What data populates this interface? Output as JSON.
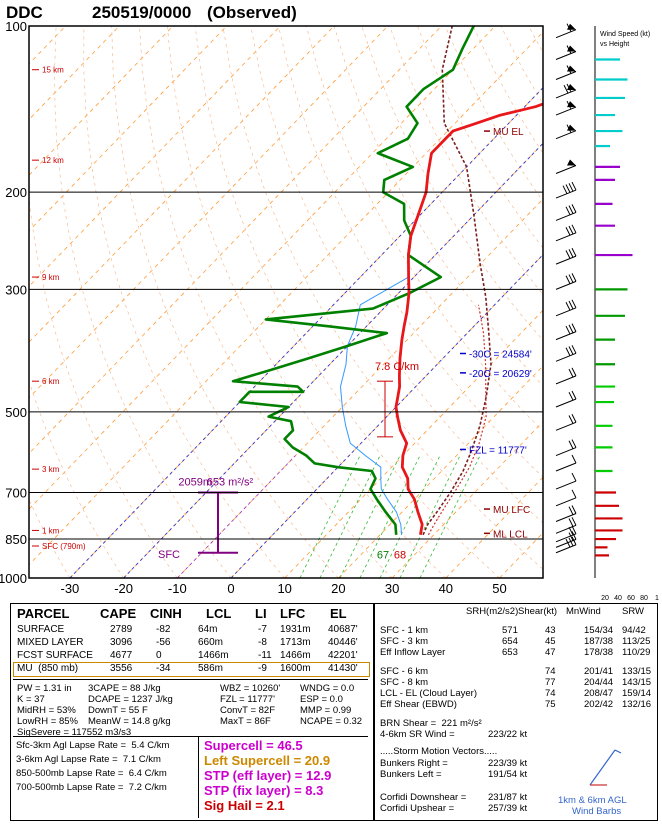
{
  "title": {
    "station": "DDC",
    "stamp": "250519/0000",
    "obs": "(Observed)"
  },
  "chart_data": {
    "type": "line",
    "title": "DDC 250519/0000 (Observed)",
    "xlabel": "",
    "ylabel": "",
    "x_ticks": [
      -30,
      -20,
      -10,
      0,
      10,
      20,
      30,
      40,
      50
    ],
    "p_ticks": [
      100,
      200,
      300,
      500,
      700,
      850,
      1000
    ],
    "pressure_axis": "log",
    "temp_range": [
      -35,
      55
    ],
    "pressure_range": [
      100,
      1000
    ],
    "height_labels": [
      "15 km",
      "12 km",
      "9 km",
      "6 km",
      "3 km",
      "1 km",
      "SFC (790m)"
    ],
    "height_label_pressures": [
      120,
      175,
      285,
      440,
      635,
      820,
      875
    ],
    "temperature": {
      "name": "Temperature",
      "color": "#e8171a",
      "points": [
        [
          27.5,
          835
        ],
        [
          26,
          800
        ],
        [
          23,
          760
        ],
        [
          20,
          720
        ],
        [
          17,
          690
        ],
        [
          15,
          660
        ],
        [
          12,
          630
        ],
        [
          10,
          600
        ],
        [
          8.5,
          570
        ],
        [
          5,
          540
        ],
        [
          2,
          510
        ],
        [
          0,
          490
        ],
        [
          -3,
          450
        ],
        [
          -5,
          430
        ],
        [
          -8,
          400
        ],
        [
          -11,
          370
        ],
        [
          -13,
          350
        ],
        [
          -15,
          330
        ],
        [
          -18,
          305
        ],
        [
          -21,
          285
        ],
        [
          -25,
          260
        ],
        [
          -28,
          240
        ],
        [
          -31,
          215
        ],
        [
          -33,
          200
        ],
        [
          -36,
          185
        ],
        [
          -39,
          170
        ],
        [
          -39,
          155
        ],
        [
          -36,
          150
        ],
        [
          -33,
          145
        ],
        [
          -28,
          140
        ],
        [
          -25,
          135
        ],
        [
          -26,
          130
        ],
        [
          -27,
          125
        ],
        [
          -24,
          120
        ],
        [
          -23,
          115
        ],
        [
          -26,
          110
        ],
        [
          -29,
          105
        ],
        [
          -30,
          100
        ]
      ]
    },
    "dewpoint": {
      "name": "Dewpoint",
      "color": "#008000",
      "points": [
        [
          23,
          835
        ],
        [
          21,
          800
        ],
        [
          17,
          760
        ],
        [
          13,
          720
        ],
        [
          10,
          690
        ],
        [
          9,
          660
        ],
        [
          7,
          640
        ],
        [
          0,
          630
        ],
        [
          -5,
          620
        ],
        [
          -8,
          600
        ],
        [
          -12,
          580
        ],
        [
          -15,
          560
        ],
        [
          -15,
          540
        ],
        [
          -17,
          520
        ],
        [
          -22,
          510
        ],
        [
          -20,
          490
        ],
        [
          -30,
          480
        ],
        [
          -30,
          460
        ],
        [
          -20,
          460
        ],
        [
          -22,
          450
        ],
        [
          -35,
          440
        ],
        [
          -30,
          420
        ],
        [
          -25,
          400
        ],
        [
          -20,
          380
        ],
        [
          -15,
          360
        ],
        [
          -27,
          350
        ],
        [
          -40,
          340
        ],
        [
          -22,
          325
        ],
        [
          -18,
          305
        ],
        [
          -15,
          285
        ],
        [
          -25,
          260
        ],
        [
          -28,
          240
        ],
        [
          -32,
          225
        ],
        [
          -35,
          210
        ],
        [
          -41,
          200
        ],
        [
          -43,
          190
        ],
        [
          -40,
          180
        ],
        [
          -49,
          170
        ],
        [
          -46,
          160
        ],
        [
          -47,
          150
        ],
        [
          -52,
          140
        ],
        [
          -52,
          130
        ],
        [
          -50,
          120
        ],
        [
          -52,
          110
        ],
        [
          -54,
          100
        ]
      ]
    },
    "wetbulb": {
      "name": "Wet-bulb",
      "color": "#3399ff",
      "points": [
        [
          24,
          835
        ],
        [
          22,
          800
        ],
        [
          19,
          760
        ],
        [
          15,
          720
        ],
        [
          12,
          690
        ],
        [
          10,
          660
        ],
        [
          8,
          630
        ],
        [
          3,
          600
        ],
        [
          -2,
          570
        ],
        [
          -6,
          530
        ],
        [
          -10,
          490
        ],
        [
          -14,
          450
        ],
        [
          -17,
          410
        ],
        [
          -20,
          380
        ],
        [
          -22,
          350
        ],
        [
          -25,
          320
        ],
        [
          -21,
          285
        ],
        [
          -25,
          260
        ],
        [
          -28,
          240
        ],
        [
          -31,
          215
        ],
        [
          -33,
          200
        ],
        [
          -36,
          185
        ],
        [
          -39,
          170
        ],
        [
          -39,
          155
        ],
        [
          -36,
          150
        ],
        [
          -33,
          145
        ],
        [
          -28,
          140
        ],
        [
          -25,
          135
        ],
        [
          -26,
          130
        ],
        [
          -27,
          125
        ],
        [
          -24,
          120
        ],
        [
          -23,
          115
        ],
        [
          -26,
          110
        ],
        [
          -29,
          105
        ],
        [
          -30,
          100
        ]
      ]
    },
    "parcel_mu": {
      "name": "MU parcel",
      "color": "#7b1f1f",
      "points": [
        [
          28,
          835
        ],
        [
          27,
          800
        ],
        [
          26.5,
          760
        ],
        [
          25.5,
          700
        ],
        [
          24,
          640
        ],
        [
          22,
          590
        ],
        [
          19,
          530
        ],
        [
          15,
          470
        ],
        [
          10,
          410
        ],
        [
          4,
          360
        ],
        [
          -3,
          310
        ],
        [
          -10,
          270
        ],
        [
          -20,
          220
        ],
        [
          -30,
          180
        ],
        [
          -42,
          150
        ],
        [
          -52,
          120
        ],
        [
          -58,
          100
        ]
      ]
    },
    "parcel_virtual": {
      "name": "Virtual parcel",
      "color": "#cc3333",
      "points": [
        [
          29,
          835
        ],
        [
          28,
          790
        ],
        [
          27,
          740
        ],
        [
          26,
          690
        ],
        [
          24.5,
          630
        ],
        [
          22,
          570
        ],
        [
          18.5,
          510
        ],
        [
          14,
          460
        ],
        [
          9,
          410
        ],
        [
          3,
          360
        ],
        [
          -3,
          320
        ]
      ]
    },
    "wind_profile": {
      "pressures": [
        105,
        115,
        125,
        135,
        145,
        160,
        185,
        205,
        225,
        245,
        270,
        300,
        335,
        370,
        405,
        445,
        490,
        540,
        600,
        640,
        690,
        740,
        790,
        830,
        860,
        880,
        900
      ],
      "speeds_kt": [
        55,
        60,
        62,
        65,
        60,
        55,
        45,
        35,
        30,
        33,
        33,
        33,
        30,
        30,
        25,
        20,
        18,
        18,
        15,
        10,
        10,
        10,
        15,
        15,
        15,
        20,
        25
      ]
    },
    "wind_bars": {
      "colors": [
        "#00cccc",
        "#00cccc",
        "#00cccc",
        "#00cccc",
        "#00cccc",
        "#00cccc",
        "#9900cc",
        "#9900cc",
        "#9900cc",
        "#9900cc",
        "#9900cc",
        "#009900",
        "#009900",
        "#009900",
        "#009900",
        "#00cc00",
        "#00cc00",
        "#00cc00",
        "#00cc00",
        "#00cc00",
        "#cc0000",
        "#cc0000",
        "#cc0000",
        "#cc0000",
        "#cc0000",
        "#cc0000",
        "#cc0000"
      ],
      "pressures": [
        115,
        125,
        135,
        145,
        155,
        165,
        180,
        190,
        210,
        230,
        260,
        300,
        335,
        370,
        410,
        450,
        480,
        530,
        580,
        640,
        700,
        740,
        780,
        820,
        850,
        880,
        910
      ],
      "speeds": [
        50,
        65,
        60,
        40,
        55,
        30,
        50,
        40,
        35,
        40,
        75,
        65,
        60,
        40,
        40,
        40,
        38,
        35,
        35,
        35,
        42,
        48,
        55,
        55,
        42,
        25,
        28
      ]
    },
    "annotations": {
      "mu_el": "MU EL",
      "mu_lfc": "MU LFC",
      "ml_lcl": "ML LCL",
      "c30": "-30C = 24584'",
      "c20": "-20C = 20629'",
      "fzl": "FZL = 11777'",
      "lapse": "7.8 C/km",
      "eff_inflow_low": "2059m",
      "eff_inflow_srh": "653 m²/s²",
      "sfc": "SFC",
      "t_sfc": "67",
      "td_sfc": "68"
    },
    "wind_legend": {
      "title": "Wind Speed (kt)",
      "sub": "vs Height",
      "scale": [
        "20",
        "40",
        "60",
        "80",
        "1"
      ]
    }
  },
  "panel": {
    "parcel_headers": [
      "PARCEL",
      "CAPE",
      "CINH",
      "LCL",
      "LI",
      "LFC",
      "EL"
    ],
    "parcels": [
      [
        "SURFACE",
        "2789",
        "-82",
        "64m",
        "-7",
        "1931m",
        "40687'"
      ],
      [
        "MIXED LAYER",
        "3096",
        "-56",
        "660m",
        "-8",
        "1713m",
        "40446'"
      ],
      [
        "FCST SURFACE",
        "4677",
        "0",
        "1466m",
        "-11",
        "1466m",
        "42201'"
      ],
      [
        "MU  (850 mb)",
        "3556",
        "-34",
        "586m",
        "-9",
        "1600m",
        "41430'"
      ]
    ],
    "indices_col1": [
      "PW = 1.31 in",
      "K = 37",
      "MidRH = 53%",
      "LowRH = 85%",
      "SigSevere = 117552 m3/s3"
    ],
    "indices_col2": [
      "3CAPE = 88 J/kg",
      "DCAPE = 1237 J/kg",
      "DownT = 55 F",
      "MeanW = 14.8 g/kg"
    ],
    "indices_col3": [
      "WBZ = 10260'",
      "FZL = 11777'",
      "ConvT = 82F",
      "MaxT = 86F"
    ],
    "indices_col4": [
      "WNDG = 0.0",
      "ESP = 0.0",
      "MMP = 0.99",
      "NCAPE = 0.32"
    ],
    "lapse_rates": [
      "Sfc-3km Agl Lapse Rate =  5.4 C/km",
      "3-6km Agl Lapse Rate =  7.1 C/km",
      "850-500mb Lapse Rate =  6.4 C/km",
      "700-500mb Lapse Rate =  7.2 C/km"
    ],
    "composites": [
      {
        "text": "Supercell = 46.5",
        "color": "#cc00cc"
      },
      {
        "text": "Left Supercell = 20.9",
        "color": "#cc8800"
      },
      {
        "text": "STP (eff layer) = 12.9",
        "color": "#cc00cc"
      },
      {
        "text": "STP (fix layer) = 8.3",
        "color": "#cc00cc"
      },
      {
        "text": "Sig Hail = 2.1",
        "color": "#cc0000"
      }
    ],
    "kin_headers": [
      "SRH(m2/s2)",
      "Shear(kt)",
      "MnWind",
      "SRW"
    ],
    "kin_rows": [
      [
        "SFC - 1 km",
        "571",
        "43",
        "154/34",
        "94/42"
      ],
      [
        "SFC - 3 km",
        "654",
        "45",
        "187/38",
        "113/25"
      ],
      [
        "Eff Inflow Layer",
        "653",
        "47",
        "178/38",
        "110/29"
      ],
      [
        "SFC - 6 km",
        "",
        "74",
        "201/41",
        "133/15"
      ],
      [
        "SFC - 8 km",
        "",
        "77",
        "204/44",
        "143/15"
      ],
      [
        "LCL - EL (Cloud Layer)",
        "",
        "74",
        "208/47",
        "159/14"
      ],
      [
        "Eff Shear (EBWD)",
        "",
        "75",
        "202/42",
        "132/16"
      ]
    ],
    "brn": [
      "BRN Shear =  221 m²/s²",
      "4-6km SR Wind =",
      "223/22 kt"
    ],
    "motion_title": ".....Storm Motion Vectors.....",
    "motion": [
      [
        "Bunkers Right =",
        "223/39 kt"
      ],
      [
        "Bunkers Left =",
        "191/54 kt"
      ],
      [
        "Corfidi Downshear =",
        "231/87 kt"
      ],
      [
        "Corfidi Upshear =",
        "257/39 kt"
      ]
    ],
    "hodo_caption": [
      "1km & 6km AGL",
      "Wind Barbs"
    ]
  }
}
